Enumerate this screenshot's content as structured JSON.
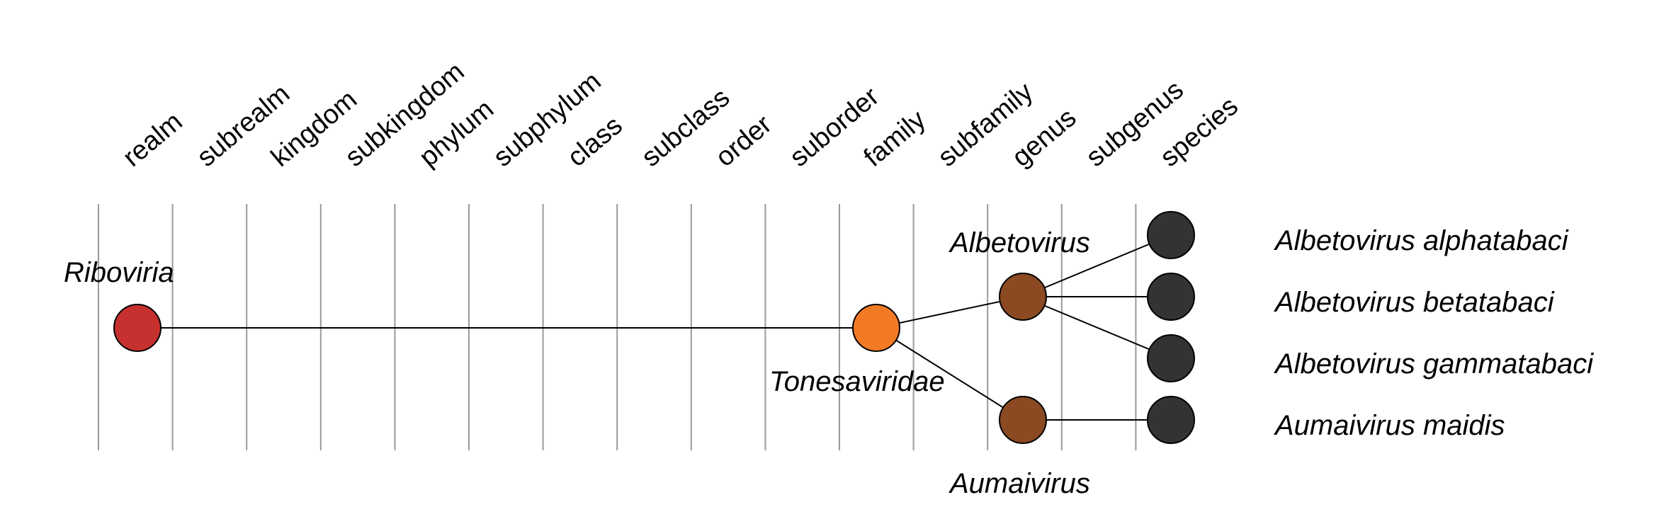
{
  "ranks": [
    "realm",
    "subrealm",
    "kingdom",
    "subkingdom",
    "phylum",
    "subphylum",
    "class",
    "subclass",
    "order",
    "suborder",
    "family",
    "subfamily",
    "genus",
    "subgenus",
    "species"
  ],
  "node_colors": {
    "realm": "#c6302e",
    "family": "#f37a25",
    "genus": "#8b4a22",
    "species": "#333333"
  },
  "taxa": {
    "realm": "Riboviria",
    "family": "Tonesaviridae",
    "genus_1": "Albetovirus",
    "genus_2": "Aumaivirus",
    "species_1": "Albetovirus alphatabaci",
    "species_2": "Albetovirus betatabaci",
    "species_3": "Albetovirus gammatabaci",
    "species_4": "Aumaivirus maidis"
  }
}
